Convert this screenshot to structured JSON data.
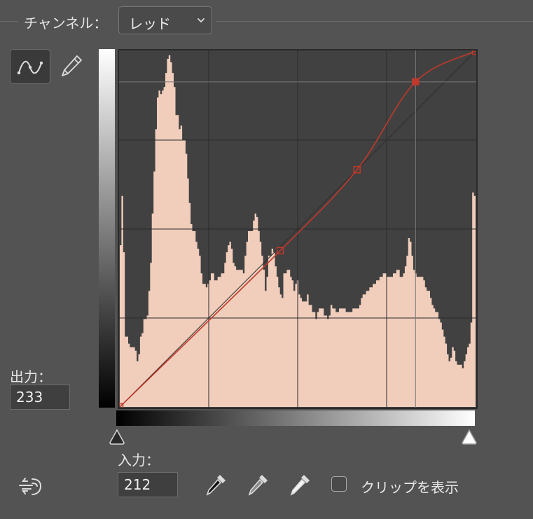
{
  "header": {
    "channel_label": "チャンネル：",
    "channel_value": "レッド"
  },
  "tools": {
    "curve_tool_icon": "curve-point-icon",
    "pencil_tool_icon": "pencil-icon"
  },
  "output": {
    "label": "出力：",
    "value": "233"
  },
  "input": {
    "label": "入力：",
    "value": "212"
  },
  "droppers": [
    "black-point-eyedropper-icon",
    "gray-point-eyedropper-icon",
    "white-point-eyedropper-icon"
  ],
  "clip": {
    "label": "クリップを表示",
    "checked": false
  },
  "colors": {
    "histogram_fill": "#f1cdbb",
    "graph_bg": "#414141",
    "curve": "#c0392b"
  },
  "curve": {
    "points": [
      [
        0,
        0
      ],
      [
        115,
        112
      ],
      [
        170,
        170
      ],
      [
        212,
        233
      ],
      [
        255,
        255
      ]
    ],
    "selected_index": 3
  },
  "histogram": [
    0.46,
    0.6,
    0.44,
    0.2,
    0.2,
    0.18,
    0.17,
    0.17,
    0.17,
    0.16,
    0.13,
    0.15,
    0.2,
    0.21,
    0.25,
    0.25,
    0.26,
    0.33,
    0.41,
    0.55,
    0.67,
    0.79,
    0.88,
    0.9,
    0.89,
    0.9,
    0.91,
    0.95,
    0.99,
    1.0,
    0.98,
    0.95,
    0.91,
    0.83,
    0.83,
    0.79,
    0.8,
    0.76,
    0.76,
    0.72,
    0.65,
    0.58,
    0.52,
    0.5,
    0.5,
    0.47,
    0.45,
    0.43,
    0.38,
    0.35,
    0.35,
    0.34,
    0.35,
    0.36,
    0.38,
    0.38,
    0.36,
    0.36,
    0.37,
    0.37,
    0.38,
    0.38,
    0.41,
    0.44,
    0.46,
    0.47,
    0.45,
    0.41,
    0.4,
    0.39,
    0.39,
    0.39,
    0.39,
    0.38,
    0.43,
    0.47,
    0.5,
    0.5,
    0.5,
    0.53,
    0.55,
    0.54,
    0.5,
    0.47,
    0.43,
    0.39,
    0.33,
    0.37,
    0.43,
    0.43,
    0.45,
    0.44,
    0.4,
    0.37,
    0.34,
    0.32,
    0.31,
    0.38,
    0.38,
    0.39,
    0.39,
    0.37,
    0.36,
    0.33,
    0.35,
    0.36,
    0.32,
    0.31,
    0.3,
    0.3,
    0.3,
    0.32,
    0.29,
    0.29,
    0.27,
    0.27,
    0.25,
    0.27,
    0.28,
    0.28,
    0.28,
    0.26,
    0.26,
    0.25,
    0.26,
    0.29,
    0.28,
    0.28,
    0.27,
    0.27,
    0.28,
    0.28,
    0.28,
    0.28,
    0.27,
    0.27,
    0.27,
    0.27,
    0.28,
    0.28,
    0.28,
    0.28,
    0.29,
    0.31,
    0.32,
    0.32,
    0.33,
    0.33,
    0.34,
    0.34,
    0.35,
    0.35,
    0.36,
    0.36,
    0.37,
    0.37,
    0.38,
    0.38,
    0.37,
    0.37,
    0.37,
    0.37,
    0.38,
    0.38,
    0.39,
    0.39,
    0.37,
    0.37,
    0.38,
    0.4,
    0.43,
    0.48,
    0.47,
    0.43,
    0.39,
    0.38,
    0.37,
    0.37,
    0.37,
    0.37,
    0.36,
    0.34,
    0.33,
    0.33,
    0.31,
    0.29,
    0.28,
    0.27,
    0.27,
    0.25,
    0.24,
    0.22,
    0.2,
    0.18,
    0.15,
    0.13,
    0.14,
    0.17,
    0.16,
    0.13,
    0.12,
    0.12,
    0.12,
    0.11,
    0.13,
    0.15,
    0.17,
    0.18,
    0.24,
    0.61,
    0.6
  ]
}
